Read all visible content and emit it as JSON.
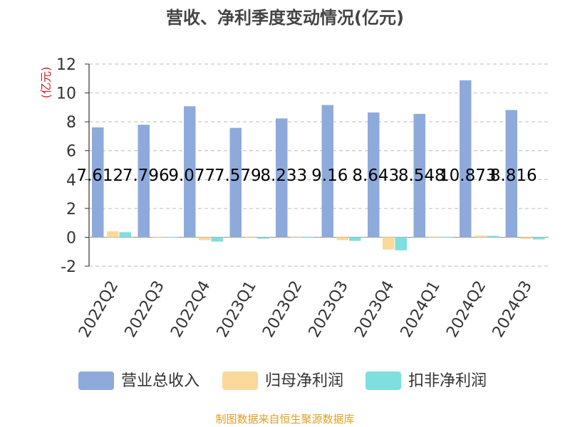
{
  "chart_data": {
    "type": "bar",
    "title": "营收、净利季度变动情况(亿元)",
    "ylabel": "(亿元)",
    "ylim": [
      -2,
      12
    ],
    "yticks": [
      -2,
      0,
      2,
      4,
      6,
      8,
      10,
      12
    ],
    "grid": true,
    "legend_position": "bottom",
    "categories": [
      "2022Q2",
      "2022Q3",
      "2022Q4",
      "2023Q1",
      "2023Q2",
      "2023Q3",
      "2023Q4",
      "2024Q1",
      "2024Q2",
      "2024Q3"
    ],
    "series": [
      {
        "name": "营业总收入",
        "color": "#8eaadb",
        "values": [
          7.612,
          7.796,
          9.077,
          7.579,
          8.233,
          9.16,
          8.643,
          8.548,
          10.873,
          8.816
        ],
        "data_labels": [
          "7.612",
          "7.796",
          "9.077",
          "7.579",
          "8.233",
          "9.16",
          "8.643",
          "8.548",
          "10.873",
          "8.816"
        ]
      },
      {
        "name": "归母净利润",
        "color": "#fbd99b",
        "values": [
          0.42,
          0.04,
          -0.2,
          0.05,
          0.05,
          -0.2,
          -0.85,
          0.05,
          0.12,
          -0.12
        ]
      },
      {
        "name": "扣非净利润",
        "color": "#7fdede",
        "values": [
          0.35,
          0.02,
          -0.3,
          -0.1,
          0.04,
          -0.25,
          -0.9,
          0.03,
          0.1,
          -0.15
        ]
      }
    ]
  },
  "footer": {
    "source": "制图数据来自恒生聚源数据库"
  }
}
